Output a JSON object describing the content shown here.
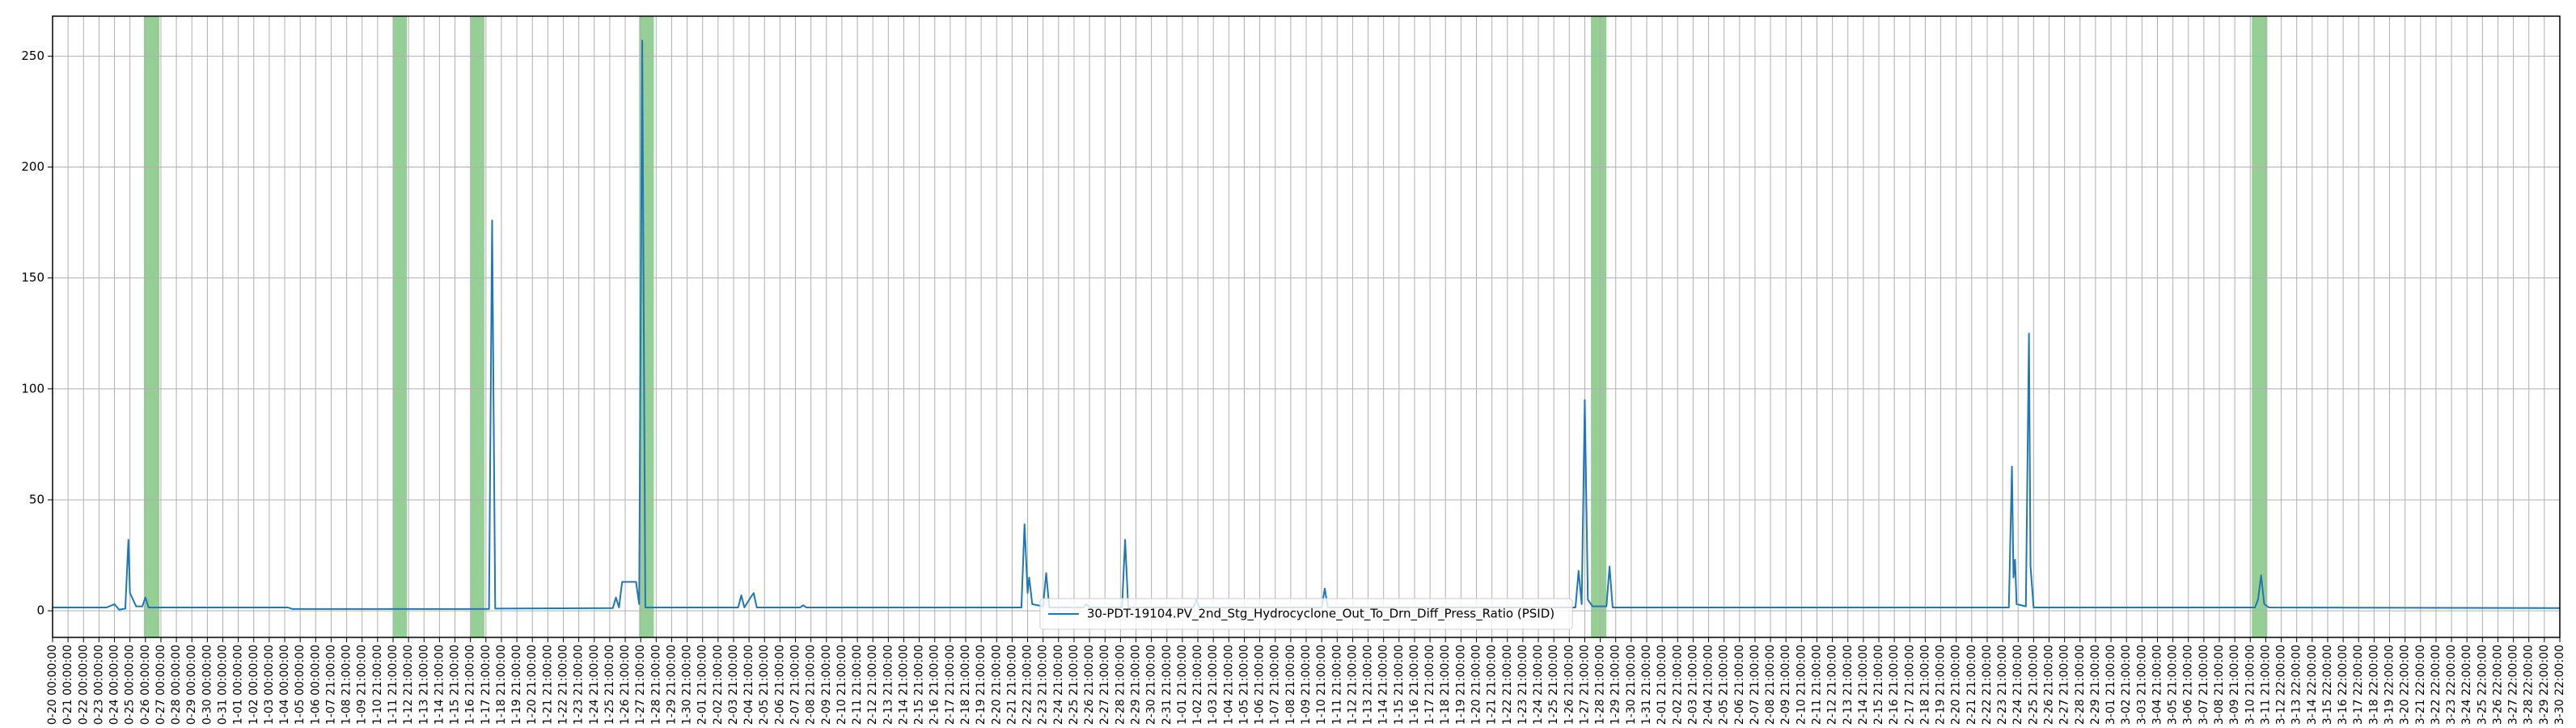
{
  "chart_data": {
    "type": "line",
    "series": [
      {
        "name": "30-PDT-19104.PV_2nd_Stg_Hydrocyclone_Out_To_Drn_Diff_Press_Ratio (PSID)",
        "color": "#1f77b4",
        "x": [
          0,
          3.5,
          4.0,
          4.3,
          4.7,
          4.9,
          5.0,
          5.2,
          5.4,
          5.8,
          6.0,
          6.2,
          15.2,
          15.5,
          28.2,
          28.4,
          28.6,
          36.2,
          36.4,
          36.6,
          36.8,
          37.7,
          37.9,
          38.1,
          38.3,
          44.3,
          44.5,
          44.7,
          45.1,
          45.3,
          45.5,
          48.3,
          48.5,
          48.7,
          62.6,
          62.8,
          63.0,
          63.1,
          63.3,
          64.0,
          64.2,
          64.4,
          66.6,
          66.8,
          67.0,
          69.1,
          69.3,
          69.5,
          73.7,
          73.9,
          74.1,
          82.0,
          82.2,
          82.4,
          98.4,
          98.6,
          98.8,
          99.0,
          99.2,
          99.5,
          100.4,
          100.6,
          100.8,
          126.4,
          126.6,
          126.7,
          126.8,
          126.9,
          127.5,
          127.7,
          127.8,
          128.0,
          142.3,
          142.5,
          142.7,
          142.9,
          143.2,
          162
        ],
        "values": [
          1.5,
          1.5,
          3,
          0.5,
          1,
          32,
          8,
          5,
          2,
          2,
          6,
          1.5,
          1.5,
          0.8,
          0.8,
          176,
          1,
          1.2,
          6,
          1.5,
          13,
          13,
          3,
          257,
          1.5,
          1.5,
          7,
          1.5,
          6,
          8,
          1.5,
          1.5,
          2.5,
          1.5,
          1.5,
          39,
          8,
          15,
          3,
          2,
          17,
          1.5,
          1.5,
          3,
          1.5,
          1.5,
          32,
          1.5,
          1.5,
          5,
          1.5,
          1.5,
          10,
          1.5,
          1.5,
          18,
          3,
          95,
          5,
          2,
          2,
          20,
          1.5,
          1.5,
          65,
          15,
          23,
          3,
          2,
          125,
          20,
          1.5,
          1.5,
          5,
          16,
          3,
          1.5,
          1.2
        ]
      }
    ],
    "spans": [
      [
        5.9,
        6.9
      ],
      [
        22.0,
        22.9
      ],
      [
        27.0,
        27.9
      ],
      [
        37.9,
        38.85
      ],
      [
        99.4,
        100.4
      ],
      [
        142.1,
        143.1
      ]
    ],
    "span_color": "#2ca02c",
    "xlim": [
      0,
      162
    ],
    "ylim": [
      -12,
      268
    ],
    "yticks": [
      0,
      50,
      100,
      150,
      200,
      250
    ],
    "grid": true,
    "legend": "lower center",
    "xticks": [
      {
        "value": 0,
        "label": "0-20 00:00:00"
      },
      {
        "value": 1,
        "label": "0-21 00:00:00"
      },
      {
        "value": 2,
        "label": "0-22 00:00:00"
      },
      {
        "value": 3,
        "label": "0-23 00:00:00"
      },
      {
        "value": 4,
        "label": "0-24 00:00:00"
      },
      {
        "value": 5,
        "label": "0-25 00:00:00"
      },
      {
        "value": 6,
        "label": "0-26 00:00:00"
      },
      {
        "value": 7,
        "label": "0-27 00:00:00"
      },
      {
        "value": 8,
        "label": "0-28 00:00:00"
      },
      {
        "value": 9,
        "label": "0-29 00:00:00"
      },
      {
        "value": 10,
        "label": "0-30 00:00:00"
      },
      {
        "value": 11,
        "label": "0-31 00:00:00"
      },
      {
        "value": 12,
        "label": "1-01 00:00:00"
      },
      {
        "value": 13,
        "label": "1-02 00:00:00"
      },
      {
        "value": 14,
        "label": "1-03 00:00:00"
      },
      {
        "value": 15,
        "label": "1-04 00:00:00"
      },
      {
        "value": 16,
        "label": "1-05 00:00:00"
      },
      {
        "value": 17,
        "label": "1-06 00:00:00"
      },
      {
        "value": 18,
        "label": "1-07 21:00:00"
      },
      {
        "value": 19,
        "label": "1-08 21:00:00"
      },
      {
        "value": 20,
        "label": "1-09 21:00:00"
      },
      {
        "value": 21,
        "label": "1-10 21:00:00"
      },
      {
        "value": 22,
        "label": "1-11 21:00:00"
      },
      {
        "value": 23,
        "label": "1-12 21:00:00"
      },
      {
        "value": 24,
        "label": "1-13 21:00:00"
      },
      {
        "value": 25,
        "label": "1-14 21:00:00"
      },
      {
        "value": 26,
        "label": "1-15 21:00:00"
      },
      {
        "value": 27,
        "label": "1-16 21:00:00"
      },
      {
        "value": 28,
        "label": "1-17 21:00:00"
      },
      {
        "value": 29,
        "label": "1-18 21:00:00"
      },
      {
        "value": 30,
        "label": "1-19 21:00:00"
      },
      {
        "value": 31,
        "label": "1-20 21:00:00"
      },
      {
        "value": 32,
        "label": "1-21 21:00:00"
      },
      {
        "value": 33,
        "label": "1-22 21:00:00"
      },
      {
        "value": 34,
        "label": "1-23 21:00:00"
      },
      {
        "value": 35,
        "label": "1-24 21:00:00"
      },
      {
        "value": 36,
        "label": "1-25 21:00:00"
      },
      {
        "value": 37,
        "label": "1-26 21:00:00"
      },
      {
        "value": 38,
        "label": "1-27 21:00:00"
      },
      {
        "value": 39,
        "label": "1-28 21:00:00"
      },
      {
        "value": 40,
        "label": "1-29 21:00:00"
      },
      {
        "value": 41,
        "label": "1-30 21:00:00"
      },
      {
        "value": 42,
        "label": "2-01 21:00:00"
      },
      {
        "value": 43,
        "label": "2-02 21:00:00"
      },
      {
        "value": 44,
        "label": "2-03 21:00:00"
      },
      {
        "value": 45,
        "label": "2-04 21:00:00"
      },
      {
        "value": 46,
        "label": "2-05 21:00:00"
      },
      {
        "value": 47,
        "label": "2-06 21:00:00"
      },
      {
        "value": 48,
        "label": "2-07 21:00:00"
      },
      {
        "value": 49,
        "label": "2-08 21:00:00"
      },
      {
        "value": 50,
        "label": "2-09 21:00:00"
      },
      {
        "value": 51,
        "label": "2-10 21:00:00"
      },
      {
        "value": 52,
        "label": "2-11 21:00:00"
      },
      {
        "value": 53,
        "label": "2-12 21:00:00"
      },
      {
        "value": 54,
        "label": "2-13 21:00:00"
      },
      {
        "value": 55,
        "label": "2-14 21:00:00"
      },
      {
        "value": 56,
        "label": "2-15 21:00:00"
      },
      {
        "value": 57,
        "label": "2-16 21:00:00"
      },
      {
        "value": 58,
        "label": "2-17 21:00:00"
      },
      {
        "value": 59,
        "label": "2-18 21:00:00"
      },
      {
        "value": 60,
        "label": "2-19 21:00:00"
      },
      {
        "value": 61,
        "label": "2-20 21:00:00"
      },
      {
        "value": 62,
        "label": "2-21 21:00:00"
      },
      {
        "value": 63,
        "label": "2-22 21:00:00"
      },
      {
        "value": 64,
        "label": "2-23 21:00:00"
      },
      {
        "value": 65,
        "label": "2-24 21:00:00"
      },
      {
        "value": 66,
        "label": "2-25 21:00:00"
      },
      {
        "value": 67,
        "label": "2-26 21:00:00"
      },
      {
        "value": 68,
        "label": "2-27 21:00:00"
      },
      {
        "value": 69,
        "label": "2-28 21:00:00"
      },
      {
        "value": 70,
        "label": "2-29 21:00:00"
      },
      {
        "value": 71,
        "label": "2-30 21:00:00"
      },
      {
        "value": 72,
        "label": "2-31 21:00:00"
      },
      {
        "value": 73,
        "label": "1-01 21:00:00"
      },
      {
        "value": 74,
        "label": "1-02 21:00:00"
      },
      {
        "value": 75,
        "label": "1-03 21:00:00"
      },
      {
        "value": 76,
        "label": "1-04 21:00:00"
      },
      {
        "value": 77,
        "label": "1-05 21:00:00"
      },
      {
        "value": 78,
        "label": "1-06 21:00:00"
      },
      {
        "value": 79,
        "label": "1-07 21:00:00"
      },
      {
        "value": 80,
        "label": "1-08 21:00:00"
      },
      {
        "value": 81,
        "label": "1-09 21:00:00"
      },
      {
        "value": 82,
        "label": "1-10 21:00:00"
      },
      {
        "value": 83,
        "label": "1-11 21:00:00"
      },
      {
        "value": 84,
        "label": "1-12 21:00:00"
      },
      {
        "value": 85,
        "label": "1-13 21:00:00"
      },
      {
        "value": 86,
        "label": "1-14 21:00:00"
      },
      {
        "value": 87,
        "label": "1-15 21:00:00"
      },
      {
        "value": 88,
        "label": "1-16 21:00:00"
      },
      {
        "value": 89,
        "label": "1-17 21:00:00"
      },
      {
        "value": 90,
        "label": "1-18 21:00:00"
      },
      {
        "value": 91,
        "label": "1-19 21:00:00"
      },
      {
        "value": 92,
        "label": "1-20 21:00:00"
      },
      {
        "value": 93,
        "label": "1-21 21:00:00"
      },
      {
        "value": 94,
        "label": "1-22 21:00:00"
      },
      {
        "value": 95,
        "label": "1-23 21:00:00"
      },
      {
        "value": 96,
        "label": "1-24 21:00:00"
      },
      {
        "value": 97,
        "label": "1-25 21:00:00"
      },
      {
        "value": 98,
        "label": "1-26 21:00:00"
      },
      {
        "value": 99,
        "label": "1-27 21:00:00"
      },
      {
        "value": 100,
        "label": "1-28 21:00:00"
      },
      {
        "value": 101,
        "label": "1-29 21:00:00"
      },
      {
        "value": 102,
        "label": "1-30 21:00:00"
      },
      {
        "value": 103,
        "label": "1-31 21:00:00"
      },
      {
        "value": 104,
        "label": "2-01 21:00:00"
      },
      {
        "value": 105,
        "label": "2-02 21:00:00"
      },
      {
        "value": 106,
        "label": "2-03 21:00:00"
      },
      {
        "value": 107,
        "label": "2-04 21:00:00"
      },
      {
        "value": 108,
        "label": "2-05 21:00:00"
      },
      {
        "value": 109,
        "label": "2-06 21:00:00"
      },
      {
        "value": 110,
        "label": "2-07 21:00:00"
      },
      {
        "value": 111,
        "label": "2-08 21:00:00"
      },
      {
        "value": 112,
        "label": "2-09 21:00:00"
      },
      {
        "value": 113,
        "label": "2-10 21:00:00"
      },
      {
        "value": 114,
        "label": "2-11 21:00:00"
      },
      {
        "value": 115,
        "label": "2-12 21:00:00"
      },
      {
        "value": 116,
        "label": "2-13 21:00:00"
      },
      {
        "value": 117,
        "label": "2-14 21:00:00"
      },
      {
        "value": 118,
        "label": "2-15 21:00:00"
      },
      {
        "value": 119,
        "label": "2-16 21:00:00"
      },
      {
        "value": 120,
        "label": "2-17 21:00:00"
      },
      {
        "value": 121,
        "label": "2-18 21:00:00"
      },
      {
        "value": 122,
        "label": "2-19 21:00:00"
      },
      {
        "value": 123,
        "label": "2-20 21:00:00"
      },
      {
        "value": 124,
        "label": "2-21 21:00:00"
      },
      {
        "value": 125,
        "label": "2-22 21:00:00"
      },
      {
        "value": 126,
        "label": "2-23 21:00:00"
      },
      {
        "value": 127,
        "label": "2-24 21:00:00"
      },
      {
        "value": 128,
        "label": "2-25 21:00:00"
      },
      {
        "value": 129,
        "label": "2-26 21:00:00"
      },
      {
        "value": 130,
        "label": "2-27 21:00:00"
      },
      {
        "value": 131,
        "label": "2-28 21:00:00"
      },
      {
        "value": 132,
        "label": "2-29 21:00:00"
      },
      {
        "value": 133,
        "label": "3-01 21:00:00"
      },
      {
        "value": 134,
        "label": "3-02 21:00:00"
      },
      {
        "value": 135,
        "label": "3-03 21:00:00"
      },
      {
        "value": 136,
        "label": "3-04 21:00:00"
      },
      {
        "value": 137,
        "label": "3-05 21:00:00"
      },
      {
        "value": 138,
        "label": "3-06 21:00:00"
      },
      {
        "value": 139,
        "label": "3-07 21:00:00"
      },
      {
        "value": 140,
        "label": "3-08 21:00:00"
      },
      {
        "value": 141,
        "label": "3-09 21:00:00"
      },
      {
        "value": 142,
        "label": "3-10 21:00:00"
      },
      {
        "value": 143,
        "label": "3-11 21:00:00"
      },
      {
        "value": 144,
        "label": "3-12 22:00:00"
      },
      {
        "value": 145,
        "label": "3-13 22:00:00"
      },
      {
        "value": 146,
        "label": "3-14 22:00:00"
      },
      {
        "value": 147,
        "label": "3-15 22:00:00"
      },
      {
        "value": 148,
        "label": "3-16 22:00:00"
      },
      {
        "value": 149,
        "label": "3-17 22:00:00"
      },
      {
        "value": 150,
        "label": "3-18 22:00:00"
      },
      {
        "value": 151,
        "label": "3-19 22:00:00"
      },
      {
        "value": 152,
        "label": "3-20 22:00:00"
      },
      {
        "value": 153,
        "label": "3-21 22:00:00"
      },
      {
        "value": 154,
        "label": "3-22 22:00:00"
      },
      {
        "value": 155,
        "label": "3-23 22:00:00"
      },
      {
        "value": 156,
        "label": "3-24 22:00:00"
      },
      {
        "value": 157,
        "label": "3-25 22:00:00"
      },
      {
        "value": 158,
        "label": "3-26 22:00:00"
      },
      {
        "value": 159,
        "label": "3-27 22:00:00"
      },
      {
        "value": 160,
        "label": "3-28 22:00:00"
      },
      {
        "value": 161,
        "label": "3-29 22:00:00"
      },
      {
        "value": 162,
        "label": "3-30 22:00:00"
      }
    ]
  }
}
